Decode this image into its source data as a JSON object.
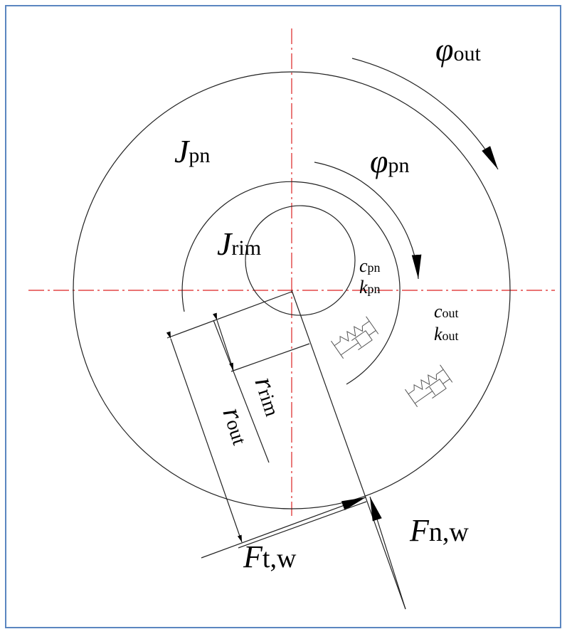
{
  "labels": {
    "phi_out": {
      "symbol": "φ",
      "subscript": "out"
    },
    "J_pn": {
      "symbol": "J",
      "subscript": "pn"
    },
    "phi_pn": {
      "symbol": "φ",
      "subscript": "pn"
    },
    "J_rim": {
      "symbol": "J",
      "subscript": "rim"
    },
    "c_pn": {
      "symbol": "c",
      "subscript": "pn"
    },
    "k_pn": {
      "symbol": "k",
      "subscript": "pn"
    },
    "c_out": {
      "symbol": "c",
      "subscript": "out"
    },
    "k_out": {
      "symbol": "k",
      "subscript": "out"
    },
    "r_rim": {
      "symbol": "r",
      "subscript": "rim"
    },
    "r_out": {
      "symbol": "r",
      "subscript": "out"
    },
    "F_tw": {
      "symbol": "F",
      "subscript": "t,w"
    },
    "F_nw": {
      "symbol": "F",
      "subscript": "n,w"
    }
  }
}
